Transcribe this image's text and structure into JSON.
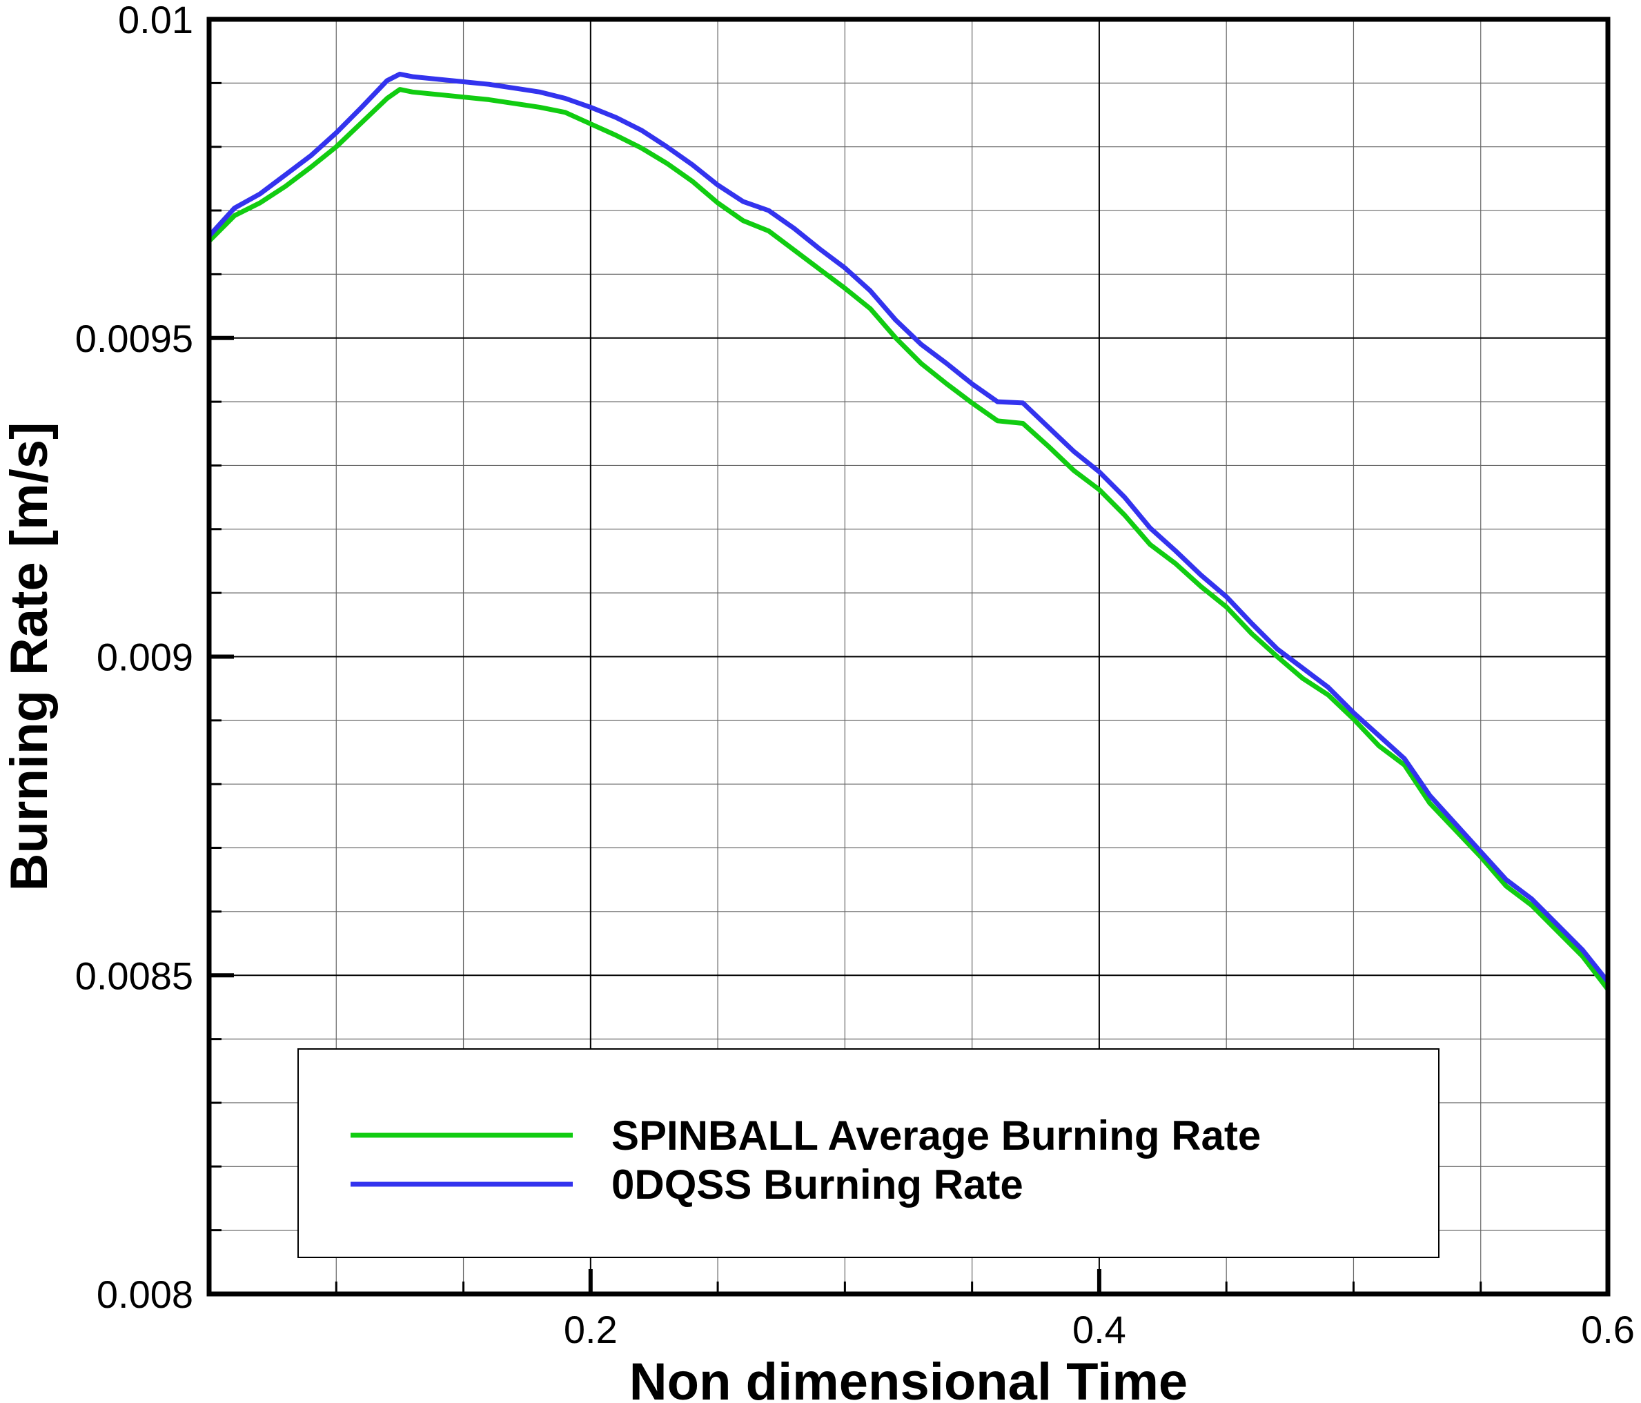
{
  "chart_data": {
    "type": "line",
    "title": "",
    "xlabel": "Non dimensional Time",
    "ylabel": "Burning Rate [m/s]",
    "xlim": [
      0.05,
      0.6
    ],
    "ylim": [
      0.008,
      0.01
    ],
    "x_major_ticks": [
      0.2,
      0.4,
      0.6
    ],
    "x_tick_labels": [
      "0.2",
      "0.4",
      "0.6"
    ],
    "x_minor_step": 0.05,
    "y_major_ticks": [
      0.008,
      0.0085,
      0.009,
      0.0095,
      0.01
    ],
    "y_tick_labels": [
      "0.008",
      "0.0085",
      "0.009",
      "0.0095",
      "0.01"
    ],
    "y_minor_step": 0.0001,
    "grid": true,
    "legend_position": "bottom-center",
    "series": [
      {
        "name": "SPINBALL Average Burning Rate",
        "color": "#11cc11",
        "x": [
          0.05,
          0.06,
          0.07,
          0.08,
          0.09,
          0.1,
          0.11,
          0.12,
          0.125,
          0.13,
          0.14,
          0.15,
          0.16,
          0.17,
          0.18,
          0.19,
          0.2,
          0.21,
          0.22,
          0.23,
          0.24,
          0.25,
          0.26,
          0.27,
          0.28,
          0.29,
          0.3,
          0.31,
          0.32,
          0.33,
          0.34,
          0.35,
          0.36,
          0.37,
          0.38,
          0.39,
          0.4,
          0.41,
          0.42,
          0.43,
          0.44,
          0.45,
          0.46,
          0.47,
          0.48,
          0.49,
          0.5,
          0.51,
          0.52,
          0.53,
          0.54,
          0.55,
          0.56,
          0.57,
          0.58,
          0.59,
          0.6
        ],
        "y": [
          0.009652,
          0.009692,
          0.009712,
          0.009738,
          0.009768,
          0.0098,
          0.009838,
          0.009876,
          0.00989,
          0.009886,
          0.009882,
          0.009878,
          0.009874,
          0.009868,
          0.009862,
          0.009854,
          0.009836,
          0.009818,
          0.009798,
          0.009774,
          0.009746,
          0.009712,
          0.009684,
          0.009668,
          0.009638,
          0.009608,
          0.009578,
          0.009546,
          0.0095,
          0.00946,
          0.009428,
          0.009398,
          0.00937,
          0.009366,
          0.00933,
          0.009292,
          0.009262,
          0.009222,
          0.009176,
          0.009146,
          0.00911,
          0.009078,
          0.009036,
          0.009,
          0.008966,
          0.00894,
          0.008902,
          0.00886,
          0.00883,
          0.00877,
          0.008728,
          0.008686,
          0.00864,
          0.00861,
          0.00857,
          0.00853,
          0.008478
        ]
      },
      {
        "name": "0DQSS Burning Rate",
        "color": "#3333ee",
        "x": [
          0.05,
          0.06,
          0.07,
          0.08,
          0.09,
          0.1,
          0.11,
          0.12,
          0.125,
          0.13,
          0.14,
          0.15,
          0.16,
          0.17,
          0.18,
          0.19,
          0.2,
          0.21,
          0.22,
          0.23,
          0.24,
          0.25,
          0.26,
          0.27,
          0.28,
          0.29,
          0.3,
          0.31,
          0.32,
          0.33,
          0.34,
          0.35,
          0.36,
          0.37,
          0.38,
          0.39,
          0.4,
          0.41,
          0.42,
          0.43,
          0.44,
          0.45,
          0.46,
          0.47,
          0.48,
          0.49,
          0.5,
          0.51,
          0.52,
          0.53,
          0.54,
          0.55,
          0.56,
          0.57,
          0.58,
          0.59,
          0.6
        ],
        "y": [
          0.00966,
          0.009704,
          0.009726,
          0.009756,
          0.009786,
          0.009822,
          0.009862,
          0.009904,
          0.009914,
          0.00991,
          0.009906,
          0.009902,
          0.009898,
          0.009892,
          0.009886,
          0.009876,
          0.009862,
          0.009846,
          0.009826,
          0.0098,
          0.009772,
          0.00974,
          0.009714,
          0.0097,
          0.009672,
          0.00964,
          0.00961,
          0.009574,
          0.009528,
          0.00949,
          0.00946,
          0.009428,
          0.0094,
          0.009398,
          0.00936,
          0.009322,
          0.00929,
          0.00925,
          0.009202,
          0.009166,
          0.009128,
          0.009094,
          0.009052,
          0.009012,
          0.008982,
          0.008952,
          0.008912,
          0.008876,
          0.00884,
          0.008782,
          0.008738,
          0.008694,
          0.00865,
          0.00862,
          0.00858,
          0.00854,
          0.00849
        ]
      }
    ]
  }
}
